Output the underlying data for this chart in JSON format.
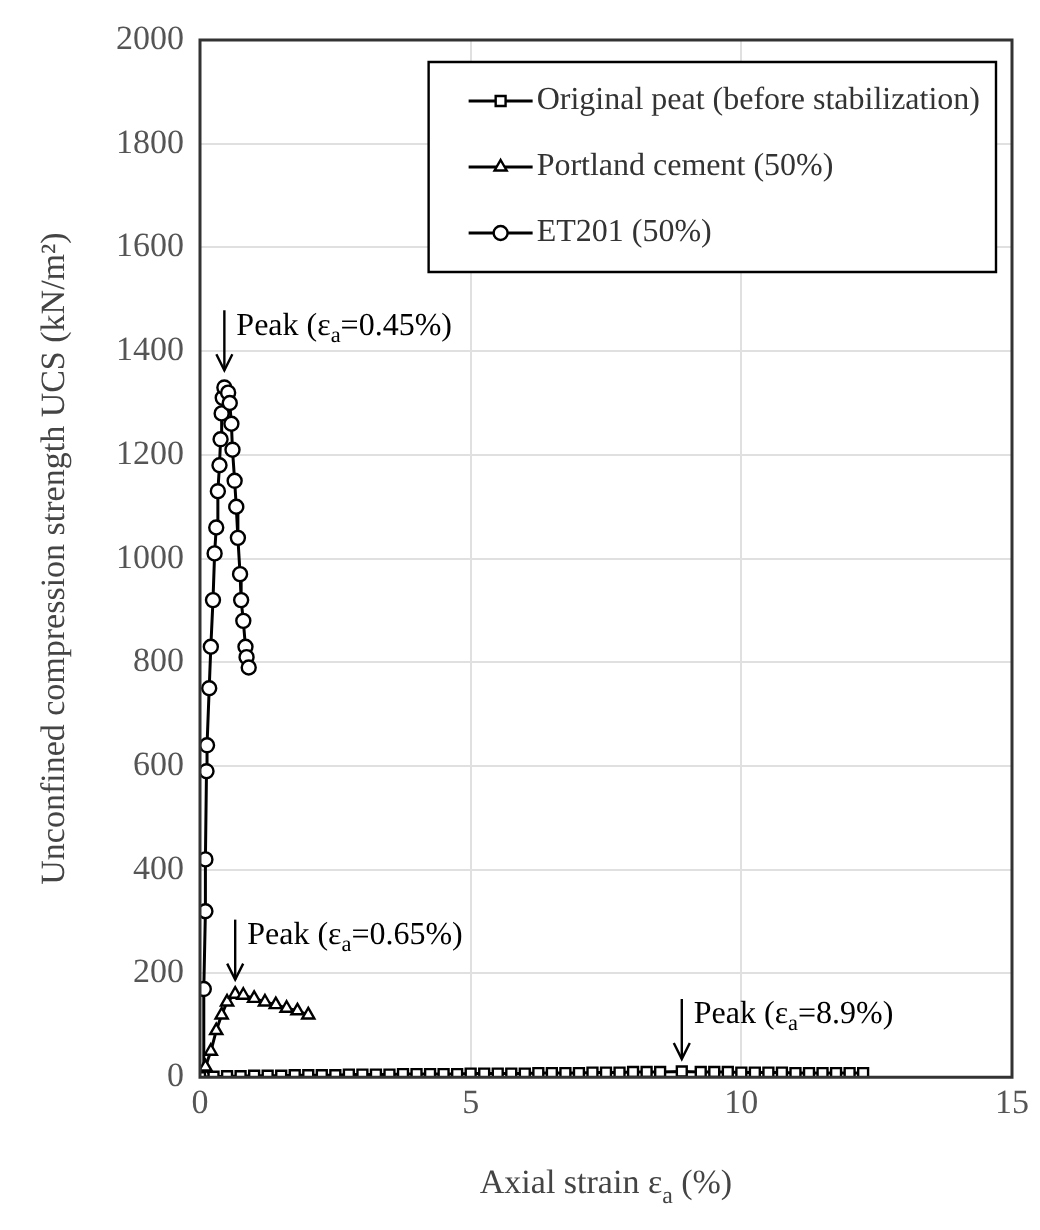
{
  "chart_data": {
    "type": "line",
    "xlabel": "Axial strain ε$_{a}$ (%)",
    "ylabel": "Unconfined compression strength UCS (kN/m²)",
    "xlim": [
      0,
      15
    ],
    "xticks": [
      0,
      5,
      10,
      15
    ],
    "ylim": [
      0,
      2000
    ],
    "yticks": [
      0,
      200,
      400,
      600,
      800,
      1000,
      1200,
      1400,
      1600,
      1800,
      2000
    ],
    "grid": true,
    "legend": "top right",
    "line_style": "solid",
    "series": [
      {
        "name": "Original peat (before stabilization)",
        "color": "#000000",
        "marker": "square",
        "x": [
          0,
          0.25,
          0.5,
          0.75,
          1,
          1.25,
          1.5,
          1.75,
          2,
          2.25,
          2.5,
          2.75,
          3,
          3.25,
          3.5,
          3.75,
          4,
          4.25,
          4.5,
          4.75,
          5,
          5.25,
          5.5,
          5.75,
          6,
          6.25,
          6.5,
          6.75,
          7,
          7.25,
          7.5,
          7.75,
          8,
          8.25,
          8.5,
          8.9,
          9.25,
          9.5,
          9.75,
          10,
          10.25,
          10.5,
          10.75,
          11,
          11.25,
          11.5,
          11.75,
          12,
          12.25
        ],
        "values": [
          0,
          1,
          2,
          2,
          3,
          3,
          3,
          4,
          4,
          4,
          4,
          5,
          5,
          5,
          5,
          6,
          6,
          6,
          6,
          6,
          7,
          7,
          7,
          7,
          7,
          8,
          8,
          8,
          8,
          9,
          9,
          9,
          10,
          10,
          10,
          11,
          10,
          10,
          10,
          9,
          9,
          9,
          9,
          8,
          8,
          8,
          8,
          8,
          8
        ]
      },
      {
        "name": "Portland cement (50%)",
        "color": "#000000",
        "marker": "triangle",
        "x": [
          0,
          0.1,
          0.2,
          0.3,
          0.4,
          0.5,
          0.65,
          0.8,
          1,
          1.2,
          1.4,
          1.6,
          1.8,
          2
        ],
        "values": [
          0,
          20,
          50,
          90,
          120,
          145,
          160,
          158,
          152,
          145,
          140,
          133,
          128,
          120
        ]
      },
      {
        "name": "ET201 (50%)",
        "color": "#000000",
        "marker": "circle",
        "x": [
          0.05,
          0.07,
          0.1,
          0.1,
          0.12,
          0.13,
          0.17,
          0.2,
          0.24,
          0.27,
          0.3,
          0.33,
          0.36,
          0.38,
          0.4,
          0.42,
          0.45,
          0.52,
          0.55,
          0.58,
          0.6,
          0.64,
          0.67,
          0.7,
          0.74,
          0.76,
          0.8,
          0.84,
          0.86,
          0.9
        ],
        "values": [
          0,
          170,
          320,
          420,
          590,
          640,
          750,
          830,
          920,
          1010,
          1060,
          1130,
          1180,
          1230,
          1280,
          1310,
          1330,
          1320,
          1300,
          1260,
          1210,
          1150,
          1100,
          1040,
          970,
          920,
          880,
          830,
          810,
          790
        ]
      }
    ],
    "annotations": [
      {
        "text": "Peak (ε$_{a}$=0.45%)",
        "x": 0.45,
        "y": 1340
      },
      {
        "text": "Peak (ε$_{a}$=0.65%)",
        "x": 0.65,
        "y": 165
      },
      {
        "text": "Peak (ε$_{a}$=8.9%)",
        "x": 8.9,
        "y": 12
      }
    ]
  }
}
